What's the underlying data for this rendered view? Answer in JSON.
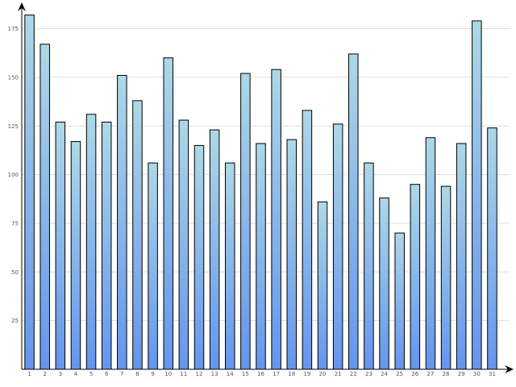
{
  "chart_data": {
    "type": "bar",
    "title": "",
    "xlabel": "",
    "ylabel": "",
    "categories": [
      "1",
      "2",
      "3",
      "4",
      "5",
      "6",
      "7",
      "8",
      "9",
      "10",
      "11",
      "12",
      "13",
      "14",
      "15",
      "16",
      "17",
      "18",
      "19",
      "20",
      "21",
      "22",
      "23",
      "24",
      "25",
      "26",
      "27",
      "28",
      "29",
      "30",
      "31"
    ],
    "values": [
      182,
      167,
      127,
      117,
      131,
      127,
      151,
      138,
      106,
      160,
      128,
      115,
      123,
      106,
      152,
      116,
      154,
      118,
      133,
      86,
      126,
      162,
      106,
      88,
      70,
      95,
      119,
      94,
      116,
      179,
      124
    ],
    "y_ticks": [
      "25",
      "50",
      "75",
      "100",
      "125",
      "150",
      "175"
    ],
    "ylim": [
      0,
      182
    ],
    "grid": true,
    "legend": "none",
    "colors": {
      "bar_top": "#add8e6",
      "bar_bottom": "#6495ed",
      "bar_stroke": "#000000",
      "grid": "#dddddd",
      "axis": "#000000"
    }
  }
}
